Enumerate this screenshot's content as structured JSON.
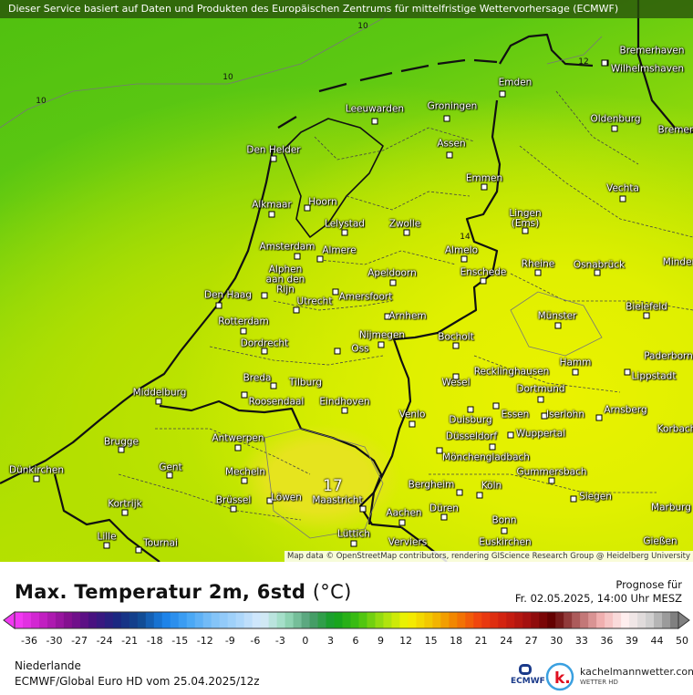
{
  "top_notice": "Dieser Service basiert auf Daten und Produkten des Europäischen Zentrums für mittelfristige Wettervorhersage (ECMWF)",
  "map": {
    "cities": [
      "Bremerhaven",
      "Wilhelmshaven",
      "Emden",
      "Leeuwarden",
      "Groningen",
      "Oldenburg",
      "Bremen",
      "Den Helder",
      "Assen",
      "Emmen",
      "Vechta",
      "Alkmaar",
      "Hoorn",
      "Lingen\n(Ems)",
      "Lelystad",
      "Zwolle",
      "Almelo",
      "Amsterdam",
      "Almere",
      "Rheine",
      "Osnabrück",
      "Minden",
      "Alphen\naan den\nRijn",
      "Apeldoorn",
      "Enschede",
      "Den Haag",
      "Utrecht",
      "Amersfoort",
      "Bielefeld",
      "Arnhem",
      "Münster",
      "Rotterdam",
      "Nijmegen",
      "Bocholt",
      "Dordrecht",
      "Oss",
      "Paderborn",
      "Hamm",
      "Recklinghausen",
      "Lippstadt",
      "Breda",
      "Tilburg",
      "Wesel",
      "Dortmund",
      "Middelburg",
      "Roosendaal",
      "Eindhoven",
      "Arnsberg",
      "Essen",
      "Iserlohn",
      "Venlo",
      "Duisburg",
      "Korbach",
      "Wuppertal",
      "Brugge",
      "Antwerpen",
      "Düsseldorf",
      "Mönchengladbach",
      "Dünkirchen",
      "Gent",
      "Mecheln",
      "Gummersbach",
      "Bergheim",
      "Köln",
      "Brüssel",
      "Löwen",
      "Maastricht",
      "Kortrijk",
      "Siegen",
      "Marburg",
      "Düren",
      "Aachen",
      "Bonn",
      "Lille",
      "Lüttich",
      "Tournai",
      "Verviers",
      "Euskirchen",
      "Gießen"
    ],
    "contour_labels": [
      "10",
      "10",
      "10",
      "12",
      "14"
    ],
    "max_value_label": "17",
    "attribution": "Map data © OpenStreetMap contributors, rendering GIScience Research Group @ Heidelberg University"
  },
  "legend": {
    "title": "Max. Temperatur 2m, 6std",
    "unit": "(°C)",
    "forecast_label": "Prognose für",
    "forecast_time": "Fr. 02.05.2025, 14:00 Uhr MESZ",
    "ticks": [
      "-36",
      "-30",
      "-27",
      "-24",
      "-21",
      "-18",
      "-15",
      "-12",
      "-9",
      "-6",
      "-3",
      "0",
      "3",
      "6",
      "9",
      "12",
      "15",
      "18",
      "21",
      "24",
      "27",
      "30",
      "33",
      "36",
      "39",
      "44",
      "50"
    ],
    "color_stops": [
      "#f238f2",
      "#c21fc2",
      "#85108f",
      "#4a1080",
      "#1a2580",
      "#10498f",
      "#1a80e8",
      "#45a5f5",
      "#80c2f8",
      "#a8d5fb",
      "#d8eafc",
      "#98dcbc",
      "#4e9c72",
      "#10a020",
      "#40c010",
      "#a2e010",
      "#f4f400",
      "#f2c200",
      "#f28000",
      "#f04010",
      "#d02010",
      "#a01010",
      "#600000",
      "#b06060",
      "#f2b2b2",
      "#fff0f0",
      "#cfcfcf",
      "#808080"
    ]
  },
  "footer": {
    "region": "Niederlande",
    "model": "ECMWF/Global Euro HD vom  25.04.2025/12z",
    "ecmwf_logo": "ECMWF",
    "brand": "kachelmannwetter.com",
    "brand_sub": "WETTER HD"
  }
}
